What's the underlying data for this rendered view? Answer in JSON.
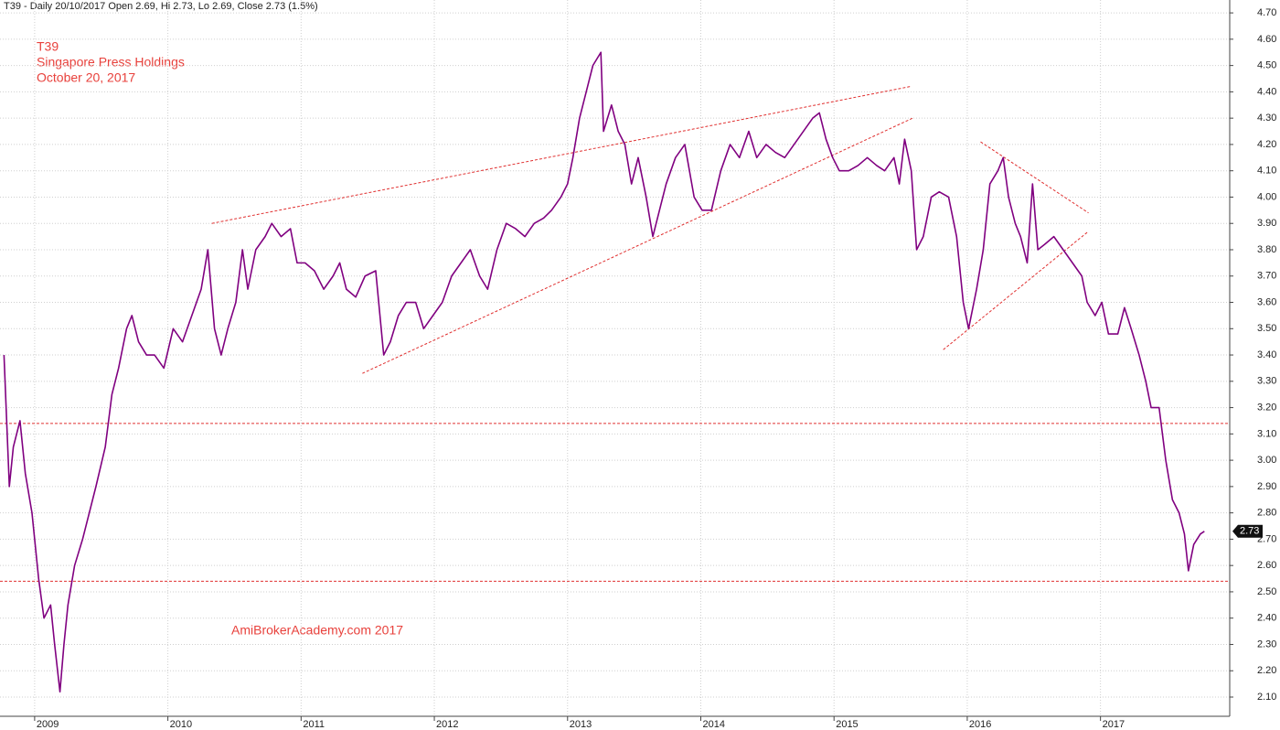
{
  "chart_data": {
    "type": "line",
    "subtitle": "T39 - Daily 20/10/2017 Open 2.69, Hi 2.73, Lo 2.69, Close 2.73 (1.5%)",
    "annotations": [
      "T39",
      "Singapore Press Holdings",
      "October 20, 2017"
    ],
    "watermark": "AmiBrokerAcademy.com  2017",
    "color": "#800080",
    "x": [
      2008.77,
      2008.81,
      2008.84,
      2008.89,
      2008.93,
      2008.98,
      2009.03,
      2009.07,
      2009.12,
      2009.15,
      2009.19,
      2009.22,
      2009.25,
      2009.3,
      2009.36,
      2009.41,
      2009.46,
      2009.53,
      2009.58,
      2009.63,
      2009.69,
      2009.73,
      2009.78,
      2009.84,
      2009.9,
      2009.97,
      2010.04,
      2010.11,
      2010.18,
      2010.25,
      2010.3,
      2010.35,
      2010.4,
      2010.45,
      2010.51,
      2010.56,
      2010.6,
      2010.66,
      2010.73,
      2010.78,
      2010.85,
      2010.92,
      2010.97,
      2011.03,
      2011.1,
      2011.17,
      2011.24,
      2011.29,
      2011.34,
      2011.41,
      2011.48,
      2011.56,
      2011.62,
      2011.67,
      2011.73,
      2011.79,
      2011.86,
      2011.92,
      2011.99,
      2012.06,
      2012.13,
      2012.2,
      2012.27,
      2012.34,
      2012.4,
      2012.47,
      2012.54,
      2012.61,
      2012.68,
      2012.75,
      2012.82,
      2012.88,
      2012.95,
      2013.0,
      2013.04,
      2013.09,
      2013.14,
      2013.19,
      2013.25,
      2013.27,
      2013.33,
      2013.38,
      2013.43,
      2013.48,
      2013.53,
      2013.59,
      2013.64,
      2013.69,
      2013.74,
      2013.81,
      2013.88,
      2013.95,
      2014.01,
      2014.08,
      2014.15,
      2014.22,
      2014.29,
      2014.36,
      2014.42,
      2014.49,
      2014.56,
      2014.63,
      2014.7,
      2014.77,
      2014.84,
      2014.89,
      2014.94,
      2014.99,
      2015.04,
      2015.11,
      2015.18,
      2015.25,
      2015.32,
      2015.38,
      2015.45,
      2015.49,
      2015.53,
      2015.58,
      2015.62,
      2015.67,
      2015.73,
      2015.79,
      2015.86,
      2015.92,
      2015.97,
      2016.01,
      2016.07,
      2016.12,
      2016.17,
      2016.23,
      2016.27,
      2016.31,
      2016.36,
      2016.4,
      2016.45,
      2016.49,
      2016.53,
      2016.58,
      2016.65,
      2016.72,
      2016.79,
      2016.86,
      2016.9,
      2016.96,
      2017.01,
      2017.06,
      2017.13,
      2017.18,
      2017.23,
      2017.29,
      2017.34,
      2017.38,
      2017.44,
      2017.49,
      2017.54,
      2017.59,
      2017.63,
      2017.66,
      2017.7,
      2017.75,
      2017.78
    ],
    "values": [
      3.4,
      2.9,
      3.05,
      3.15,
      2.95,
      2.8,
      2.55,
      2.4,
      2.45,
      2.3,
      2.12,
      2.3,
      2.45,
      2.6,
      2.7,
      2.8,
      2.9,
      3.05,
      3.25,
      3.35,
      3.5,
      3.55,
      3.45,
      3.4,
      3.4,
      3.35,
      3.5,
      3.45,
      3.55,
      3.65,
      3.8,
      3.5,
      3.4,
      3.5,
      3.6,
      3.8,
      3.65,
      3.8,
      3.85,
      3.9,
      3.85,
      3.88,
      3.75,
      3.75,
      3.72,
      3.65,
      3.7,
      3.75,
      3.65,
      3.62,
      3.7,
      3.72,
      3.4,
      3.45,
      3.55,
      3.6,
      3.6,
      3.5,
      3.55,
      3.6,
      3.7,
      3.75,
      3.8,
      3.7,
      3.65,
      3.8,
      3.9,
      3.88,
      3.85,
      3.9,
      3.92,
      3.95,
      4.0,
      4.05,
      4.15,
      4.3,
      4.4,
      4.5,
      4.55,
      4.25,
      4.35,
      4.25,
      4.2,
      4.05,
      4.15,
      4.0,
      3.85,
      3.95,
      4.05,
      4.15,
      4.2,
      4.0,
      3.95,
      3.95,
      4.1,
      4.2,
      4.15,
      4.25,
      4.15,
      4.2,
      4.17,
      4.15,
      4.2,
      4.25,
      4.3,
      4.32,
      4.22,
      4.15,
      4.1,
      4.1,
      4.12,
      4.15,
      4.12,
      4.1,
      4.15,
      4.05,
      4.22,
      4.1,
      3.8,
      3.85,
      4.0,
      4.02,
      4.0,
      3.85,
      3.6,
      3.5,
      3.65,
      3.8,
      4.05,
      4.1,
      4.15,
      4.0,
      3.9,
      3.85,
      3.75,
      4.05,
      3.8,
      3.82,
      3.85,
      3.8,
      3.75,
      3.7,
      3.6,
      3.55,
      3.6,
      3.48,
      3.48,
      3.58,
      3.5,
      3.4,
      3.3,
      3.2,
      3.2,
      3.0,
      2.85,
      2.8,
      2.72,
      2.58,
      2.68,
      2.72,
      2.73
    ],
    "last_value": 2.73,
    "trendlines": [
      {
        "x": [
          2010.33,
          2015.57
        ],
        "y": [
          3.9,
          4.42
        ]
      },
      {
        "x": [
          2011.46,
          2015.59
        ],
        "y": [
          3.33,
          4.3
        ]
      },
      {
        "x": [
          2015.82,
          2016.91
        ],
        "y": [
          3.42,
          3.87
        ]
      },
      {
        "x": [
          2016.1,
          2016.91
        ],
        "y": [
          4.21,
          3.94
        ]
      }
    ],
    "reference_lines": [
      3.14,
      2.54
    ],
    "xlim": [
      2008.74,
      2017.97
    ],
    "xticks": [
      2009,
      2010,
      2011,
      2012,
      2013,
      2014,
      2015,
      2016,
      2017
    ],
    "ylim": [
      2.027,
      4.749
    ],
    "yticks": [
      {
        "value": 4.7,
        "label": "4.70"
      },
      {
        "value": 4.6,
        "label": "4.60"
      },
      {
        "value": 4.5,
        "label": "4.50"
      },
      {
        "value": 4.4,
        "label": "4.40"
      },
      {
        "value": 4.3,
        "label": "4.30"
      },
      {
        "value": 4.2,
        "label": "4.20"
      },
      {
        "value": 4.1,
        "label": "4.10"
      },
      {
        "value": 4.0,
        "label": "4.00"
      },
      {
        "value": 3.9,
        "label": "3.90"
      },
      {
        "value": 3.8,
        "label": "3.80"
      },
      {
        "value": 3.7,
        "label": "3.70"
      },
      {
        "value": 3.6,
        "label": "3.60"
      },
      {
        "value": 3.5,
        "label": "3.50"
      },
      {
        "value": 3.4,
        "label": "3.40"
      },
      {
        "value": 3.3,
        "label": "3.30"
      },
      {
        "value": 3.2,
        "label": "3.20"
      },
      {
        "value": 3.1,
        "label": "3.10"
      },
      {
        "value": 3.0,
        "label": "3.00"
      },
      {
        "value": 2.9,
        "label": "2.90"
      },
      {
        "value": 2.8,
        "label": "2.80"
      },
      {
        "value": 2.7,
        "label": "2.70"
      },
      {
        "value": 2.6,
        "label": "2.60"
      },
      {
        "value": 2.5,
        "label": "2.50"
      },
      {
        "value": 2.4,
        "label": "2.40"
      },
      {
        "value": 2.3,
        "label": "2.30"
      },
      {
        "value": 2.2,
        "label": "2.20"
      },
      {
        "value": 2.1,
        "label": "2.10"
      }
    ],
    "grid": true
  }
}
